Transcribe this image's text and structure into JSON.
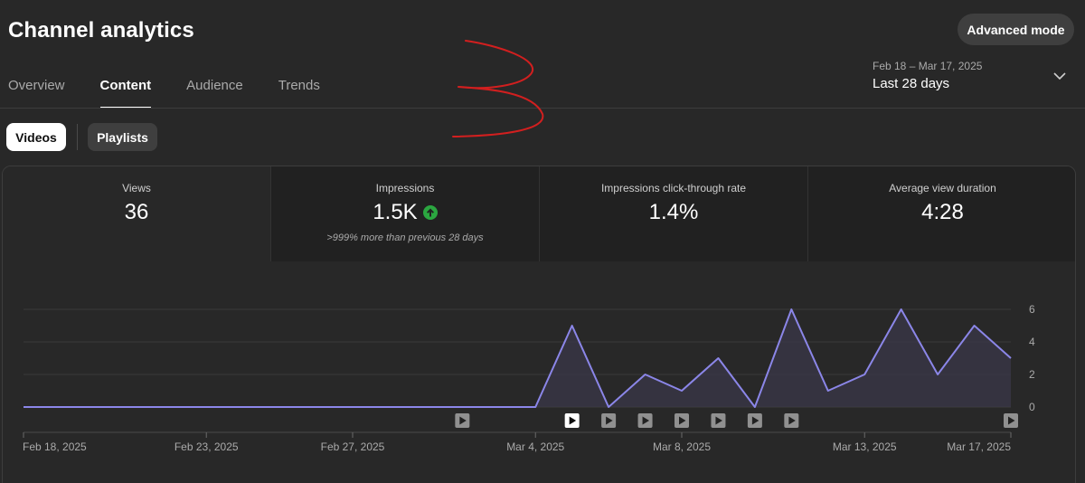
{
  "header": {
    "title": "Channel analytics",
    "advanced_mode_label": "Advanced mode"
  },
  "tabs": [
    {
      "label": "Overview",
      "active": false
    },
    {
      "label": "Content",
      "active": true
    },
    {
      "label": "Audience",
      "active": false
    },
    {
      "label": "Trends",
      "active": false
    }
  ],
  "date_picker": {
    "range": "Feb 18 – Mar 17, 2025",
    "label": "Last 28 days"
  },
  "chips": {
    "videos_label": "Videos",
    "playlists_label": "Playlists"
  },
  "metrics": [
    {
      "label": "Views",
      "value": "36",
      "sub": ""
    },
    {
      "label": "Impressions",
      "value": "1.5K",
      "sub": ">999% more than previous 28 days"
    },
    {
      "label": "Impressions click-through rate",
      "value": "1.4%",
      "sub": ""
    },
    {
      "label": "Average view duration",
      "value": "4:28",
      "sub": ""
    }
  ],
  "colors": {
    "line": "#8b86e8",
    "area": "#3a3748",
    "up_arrow": "#2ba640"
  },
  "chart_data": {
    "type": "area",
    "x": [
      "Feb 18",
      "Feb 19",
      "Feb 20",
      "Feb 21",
      "Feb 22",
      "Feb 23",
      "Feb 24",
      "Feb 25",
      "Feb 26",
      "Feb 27",
      "Feb 28",
      "Mar 1",
      "Mar 2",
      "Mar 3",
      "Mar 4",
      "Mar 5",
      "Mar 6",
      "Mar 7",
      "Mar 8",
      "Mar 9",
      "Mar 10",
      "Mar 11",
      "Mar 12",
      "Mar 13",
      "Mar 14",
      "Mar 15",
      "Mar 16",
      "Mar 17"
    ],
    "values": [
      0,
      0,
      0,
      0,
      0,
      0,
      0,
      0,
      0,
      0,
      0,
      0,
      0,
      0,
      0,
      5,
      0,
      2,
      1,
      3,
      0,
      6,
      1,
      2,
      6,
      2,
      5,
      3
    ],
    "x_tick_labels": [
      "Feb 18, 2025",
      "Feb 23, 2025",
      "Feb 27, 2025",
      "Mar 4, 2025",
      "Mar 8, 2025",
      "Mar 13, 2025",
      "Mar 17, 2025"
    ],
    "x_tick_index": [
      0,
      5,
      9,
      14,
      18,
      23,
      27
    ],
    "y_ticks": [
      0,
      2,
      4,
      6
    ],
    "ylim": [
      0,
      6
    ],
    "grid": true,
    "video_marker_index": [
      12,
      15,
      16,
      17,
      18,
      19,
      20,
      21,
      27
    ],
    "highlighted_marker_index": 15
  }
}
